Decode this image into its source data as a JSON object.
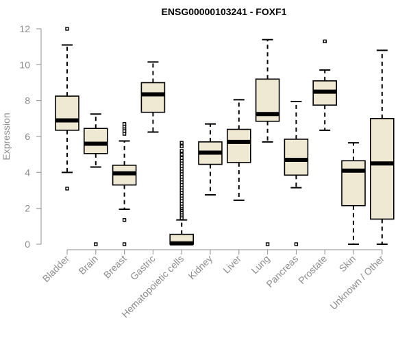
{
  "chart_data": {
    "type": "boxplot",
    "title": "ENSG00000103241 - FOXF1",
    "xlabel": "",
    "ylabel": "Expression",
    "ylim": [
      0,
      12
    ],
    "yticks": [
      0,
      2,
      4,
      6,
      8,
      10,
      12
    ],
    "grid": false,
    "categories": [
      "Bladder",
      "Brain",
      "Breast",
      "Gastric",
      "Hematopoietic cells",
      "Kidney",
      "Liver",
      "Lung",
      "Pancreas",
      "Prostate",
      "Skin",
      "Unknown / Other"
    ],
    "boxes": [
      {
        "name": "Bladder",
        "whislo": 4.0,
        "q1": 6.35,
        "med": 6.9,
        "q3": 8.25,
        "whishi": 11.1,
        "outliers": [
          12.0,
          3.1
        ]
      },
      {
        "name": "Brain",
        "whislo": 4.3,
        "q1": 5.05,
        "med": 5.6,
        "q3": 6.45,
        "whishi": 7.25,
        "outliers": [
          0.0
        ]
      },
      {
        "name": "Breast",
        "whislo": 1.95,
        "q1": 3.3,
        "med": 3.95,
        "q3": 4.4,
        "whishi": 5.75,
        "outliers": [
          6.7,
          6.55,
          6.4,
          6.3,
          6.15,
          1.35,
          0.0
        ]
      },
      {
        "name": "Gastric",
        "whislo": 6.25,
        "q1": 7.35,
        "med": 8.35,
        "q3": 9.0,
        "whishi": 10.15,
        "outliers": []
      },
      {
        "name": "Hematopoietic cells",
        "whislo": 0.0,
        "q1": 0.0,
        "med": 0.05,
        "q3": 0.55,
        "whishi": 1.35,
        "outliers": [
          5.65,
          5.45,
          5.2,
          5.0,
          4.8,
          4.65,
          4.5,
          4.35,
          4.2,
          4.05,
          3.9,
          3.75,
          3.6,
          3.45,
          3.3,
          3.15,
          3.0,
          2.85,
          2.7,
          2.55,
          2.4,
          2.25,
          2.1,
          1.95,
          1.85,
          1.75,
          1.65,
          1.55,
          1.45
        ]
      },
      {
        "name": "Kidney",
        "whislo": 2.75,
        "q1": 4.45,
        "med": 5.1,
        "q3": 5.7,
        "whishi": 6.7,
        "outliers": []
      },
      {
        "name": "Liver",
        "whislo": 2.45,
        "q1": 4.55,
        "med": 5.7,
        "q3": 6.4,
        "whishi": 8.05,
        "outliers": []
      },
      {
        "name": "Lung",
        "whislo": 5.7,
        "q1": 6.85,
        "med": 7.25,
        "q3": 9.2,
        "whishi": 11.4,
        "outliers": [
          0.0
        ]
      },
      {
        "name": "Pancreas",
        "whislo": 3.15,
        "q1": 3.85,
        "med": 4.7,
        "q3": 5.85,
        "whishi": 7.95,
        "outliers": [
          0.0
        ]
      },
      {
        "name": "Prostate",
        "whislo": 6.35,
        "q1": 7.75,
        "med": 8.5,
        "q3": 9.1,
        "whishi": 9.7,
        "outliers": [
          11.3
        ]
      },
      {
        "name": "Skin",
        "whislo": 0.0,
        "q1": 2.15,
        "med": 4.1,
        "q3": 4.65,
        "whishi": 5.65,
        "outliers": []
      },
      {
        "name": "Unknown / Other",
        "whislo": 0.0,
        "q1": 1.4,
        "med": 4.5,
        "q3": 7.0,
        "whishi": 10.8,
        "outliers": []
      }
    ]
  }
}
